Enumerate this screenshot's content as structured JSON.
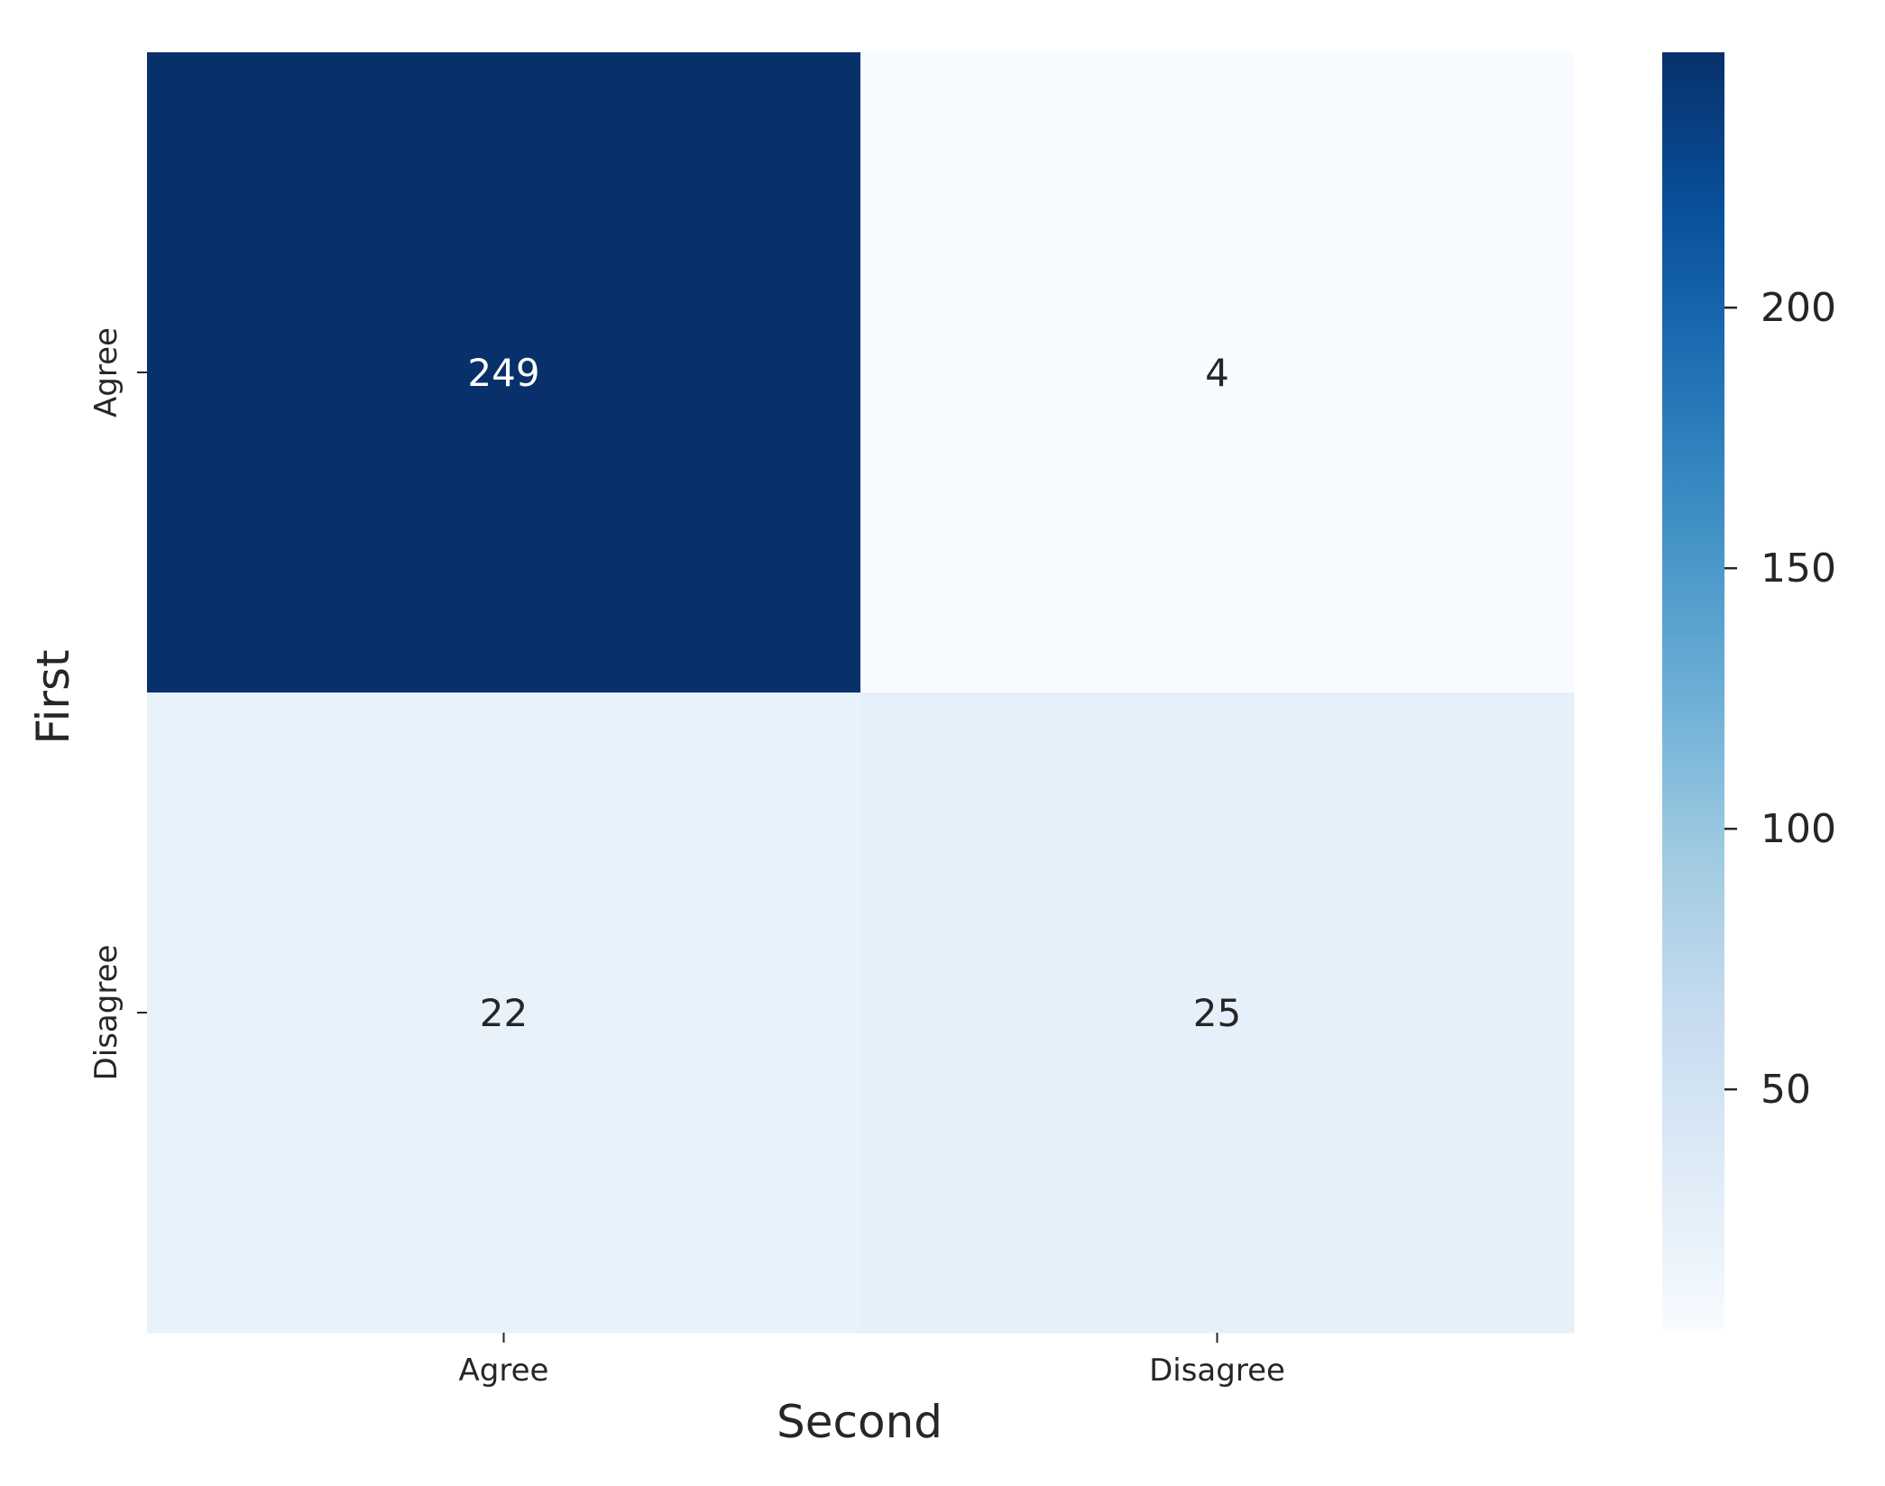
{
  "chart_data": {
    "type": "heatmap",
    "xlabel": "Second",
    "ylabel": "First",
    "x_categories": [
      "Agree",
      "Disagree"
    ],
    "y_categories": [
      "Agree",
      "Disagree"
    ],
    "values": [
      [
        249,
        4
      ],
      [
        22,
        25
      ]
    ],
    "colormap": "Blues",
    "color_range": [
      4,
      249
    ],
    "colorbar_ticks": [
      "50",
      "100",
      "150",
      "200"
    ],
    "colorbar_tick_values": [
      50,
      100,
      150,
      200
    ],
    "colors": {
      "dark_text": "#262626",
      "light_text": "#ffffff"
    }
  }
}
